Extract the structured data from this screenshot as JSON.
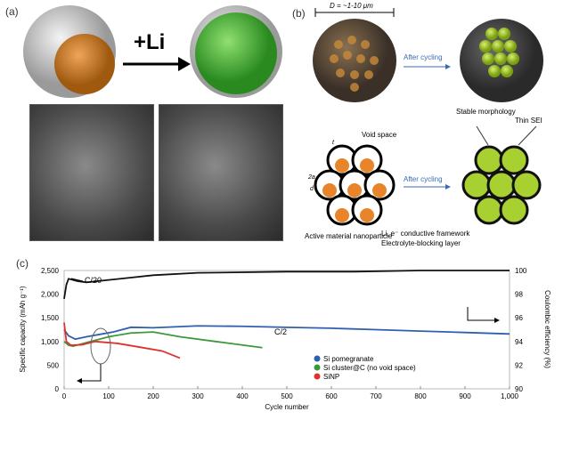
{
  "panel_a": {
    "label": "(a)",
    "reaction": "+Li"
  },
  "panel_b": {
    "label": "(b)",
    "diameter": "D = ~1-10 μm",
    "after_cycling_1": "After cycling",
    "after_cycling_2": "After cycling",
    "stable": "Stable morphology",
    "thin_sei": "Thin SEI",
    "void": "Void space",
    "t": "t",
    "two_a": "2a",
    "d": "d",
    "active": "Active material nanoparticle",
    "framework": "Li, e⁻ conductive framework",
    "blocking": "Electrolyte-blocking layer"
  },
  "colors": {
    "blue": "#2f5fae",
    "green": "#3a9a3a",
    "red": "#e03030",
    "black": "#111111",
    "orange": "#e8852a",
    "lime": "#9acd32"
  },
  "chart_data": {
    "label": "(c)",
    "type": "line",
    "xlabel": "Cycle number",
    "ylabel": "Specific capacity (mAh g⁻¹)",
    "y2label": "Coulombic efficiency (%)",
    "xlim": [
      0,
      1000
    ],
    "ylim": [
      0,
      2500
    ],
    "y2lim": [
      90,
      100
    ],
    "xticks": [
      "0",
      "100",
      "200",
      "300",
      "400",
      "500",
      "600",
      "700",
      "800",
      "900",
      "1,000"
    ],
    "yticks": [
      "0",
      "500",
      "1,000",
      "1,500",
      "2,000",
      "2,500"
    ],
    "y2ticks": [
      "90",
      "92",
      "94",
      "96",
      "98",
      "100"
    ],
    "annotations": {
      "c20": "C/20",
      "c2": "C/2"
    },
    "legend_position": "center-right",
    "series": [
      {
        "name": "Si pomegranate",
        "color": "#2f5fae",
        "x": [
          0,
          10,
          25,
          50,
          80,
          110,
          150,
          200,
          300,
          400,
          500,
          600,
          700,
          800,
          900,
          1000
        ],
        "y": [
          1250,
          1120,
          1050,
          1100,
          1150,
          1200,
          1300,
          1290,
          1330,
          1320,
          1300,
          1280,
          1250,
          1220,
          1190,
          1160
        ]
      },
      {
        "name": "Si cluster@C (no void space)",
        "color": "#3a9a3a",
        "x": [
          0,
          10,
          20,
          60,
          100,
          150,
          200,
          260,
          340,
          445
        ],
        "y": [
          1000,
          920,
          900,
          1000,
          1100,
          1180,
          1200,
          1100,
          1000,
          870
        ]
      },
      {
        "name": "SiNP",
        "color": "#e03030",
        "x": [
          0,
          5,
          15,
          40,
          70,
          120,
          170,
          220,
          260
        ],
        "y": [
          1400,
          1000,
          920,
          930,
          1000,
          960,
          880,
          800,
          650
        ]
      },
      {
        "name": "",
        "axis": "right",
        "color": "#111111",
        "x": [
          0,
          5,
          10,
          30,
          50,
          100,
          150,
          200,
          300,
          500,
          650,
          800,
          1000
        ],
        "y": [
          97.6,
          98.8,
          99.3,
          99.1,
          99.0,
          99.2,
          99.4,
          99.6,
          99.8,
          99.9,
          99.9,
          100,
          100
        ]
      }
    ]
  }
}
